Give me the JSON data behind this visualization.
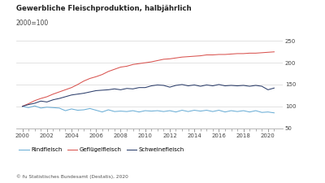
{
  "title": "Gewerbliche Fleischproduktion, halbjährlich",
  "subtitle": "2000=100",
  "source": "© fu Statistisches Bundesamt (Destatis), 2020",
  "ylim": [
    50,
    260
  ],
  "yticks": [
    50,
    100,
    150,
    200,
    250
  ],
  "xlim": [
    1999.5,
    2021.2
  ],
  "xticks": [
    2000,
    2002,
    2004,
    2006,
    2008,
    2010,
    2012,
    2014,
    2016,
    2018,
    2020
  ],
  "background_color": "#ffffff",
  "grid_color": "#dddddd",
  "legend_labels": [
    "Rindfleisch",
    "Geflügelfleisch",
    "Schweinefleisch"
  ],
  "line_colors": [
    "#6baed6",
    "#d9534f",
    "#2c3e6b"
  ],
  "rindfleisch": [
    100,
    97,
    101,
    96,
    98,
    97,
    96,
    90,
    94,
    91,
    92,
    95,
    91,
    87,
    92,
    88,
    89,
    88,
    90,
    87,
    90,
    89,
    90,
    88,
    90,
    87,
    91,
    88,
    91,
    89,
    91,
    88,
    91,
    87,
    90,
    88,
    90,
    87,
    90,
    86,
    87,
    85
  ],
  "gefluegelfleisch": [
    100,
    106,
    113,
    118,
    122,
    128,
    133,
    138,
    143,
    150,
    158,
    164,
    168,
    173,
    180,
    185,
    190,
    192,
    196,
    198,
    200,
    202,
    205,
    208,
    209,
    211,
    213,
    214,
    215,
    216,
    218,
    218,
    219,
    219,
    220,
    221,
    221,
    222,
    222,
    223,
    224,
    225
  ],
  "schweinefleisch": [
    100,
    104,
    107,
    112,
    110,
    115,
    118,
    122,
    126,
    128,
    130,
    133,
    136,
    137,
    138,
    140,
    138,
    141,
    140,
    143,
    143,
    147,
    149,
    148,
    144,
    148,
    150,
    147,
    149,
    146,
    149,
    147,
    150,
    147,
    148,
    147,
    148,
    146,
    148,
    146,
    138,
    142
  ],
  "n_points": 42
}
